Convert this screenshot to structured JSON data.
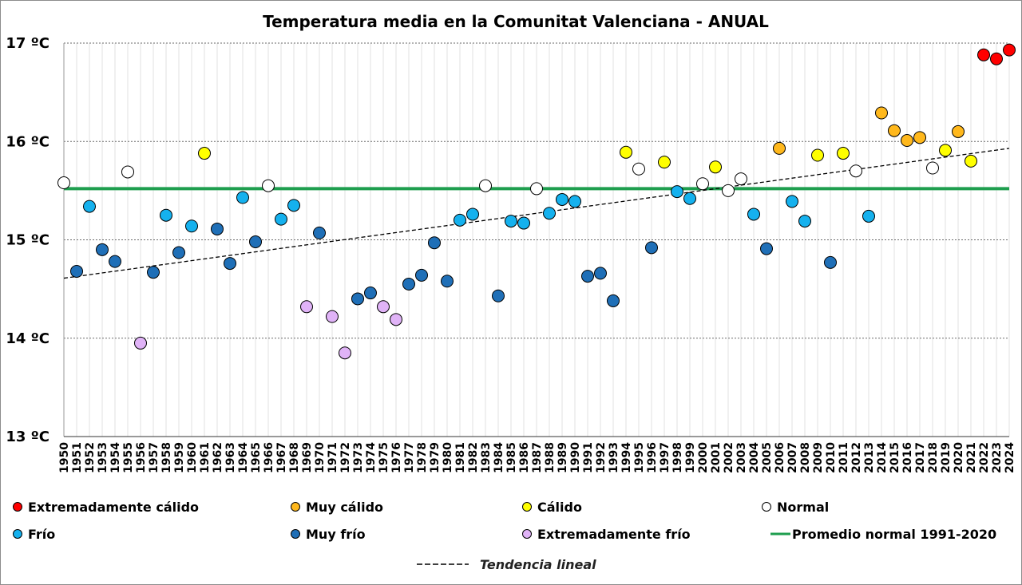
{
  "chart_data": {
    "type": "scatter",
    "title": "Temperatura media en la Comunitat Valenciana - ANUAL",
    "ylim": [
      13,
      17
    ],
    "yticks": [
      13,
      14,
      15,
      16,
      17
    ],
    "ytick_labels": [
      "13 ºC",
      "14 ºC",
      "15 ºC",
      "16 ºC",
      "17 ºC"
    ],
    "grid": true,
    "normal_line": {
      "label": "Promedio normal 1991-2020",
      "value": 15.52,
      "color": "#1e9e4e"
    },
    "trend": {
      "label": "Tendencia lineal",
      "start": [
        1950,
        14.61
      ],
      "end": [
        2024,
        15.93
      ]
    },
    "categories": [
      {
        "key": "extremadamente_calido",
        "label": "Extremadamente cálido",
        "color": "#ff0000"
      },
      {
        "key": "muy_calido",
        "label": "Muy cálido",
        "color": "#ffb81c"
      },
      {
        "key": "calido",
        "label": "Cálido",
        "color": "#ffff00"
      },
      {
        "key": "normal",
        "label": "Normal",
        "color": "#ffffff"
      },
      {
        "key": "frio",
        "label": "Frío",
        "color": "#15b1ee"
      },
      {
        "key": "muy_frio",
        "label": "Muy frío",
        "color": "#1f6fb7"
      },
      {
        "key": "extremadamente_frio",
        "label": "Extremadamente frío",
        "color": "#e0b3f7"
      }
    ],
    "points": [
      {
        "year": 1950,
        "value": 15.58,
        "cat": "normal"
      },
      {
        "year": 1951,
        "value": 14.68,
        "cat": "muy_frio"
      },
      {
        "year": 1952,
        "value": 15.34,
        "cat": "frio"
      },
      {
        "year": 1953,
        "value": 14.9,
        "cat": "muy_frio"
      },
      {
        "year": 1954,
        "value": 14.78,
        "cat": "muy_frio"
      },
      {
        "year": 1955,
        "value": 15.69,
        "cat": "normal"
      },
      {
        "year": 1956,
        "value": 13.95,
        "cat": "extremadamente_frio"
      },
      {
        "year": 1957,
        "value": 14.67,
        "cat": "muy_frio"
      },
      {
        "year": 1958,
        "value": 15.25,
        "cat": "frio"
      },
      {
        "year": 1959,
        "value": 14.87,
        "cat": "muy_frio"
      },
      {
        "year": 1960,
        "value": 15.14,
        "cat": "frio"
      },
      {
        "year": 1961,
        "value": 15.88,
        "cat": "calido"
      },
      {
        "year": 1962,
        "value": 15.11,
        "cat": "muy_frio"
      },
      {
        "year": 1963,
        "value": 14.76,
        "cat": "muy_frio"
      },
      {
        "year": 1964,
        "value": 15.43,
        "cat": "frio"
      },
      {
        "year": 1965,
        "value": 14.98,
        "cat": "muy_frio"
      },
      {
        "year": 1966,
        "value": 15.55,
        "cat": "normal"
      },
      {
        "year": 1967,
        "value": 15.21,
        "cat": "frio"
      },
      {
        "year": 1968,
        "value": 15.35,
        "cat": "frio"
      },
      {
        "year": 1969,
        "value": 14.32,
        "cat": "extremadamente_frio"
      },
      {
        "year": 1970,
        "value": 15.07,
        "cat": "muy_frio"
      },
      {
        "year": 1971,
        "value": 14.22,
        "cat": "extremadamente_frio"
      },
      {
        "year": 1972,
        "value": 13.85,
        "cat": "extremadamente_frio"
      },
      {
        "year": 1973,
        "value": 14.4,
        "cat": "muy_frio"
      },
      {
        "year": 1974,
        "value": 14.46,
        "cat": "muy_frio"
      },
      {
        "year": 1975,
        "value": 14.32,
        "cat": "extremadamente_frio"
      },
      {
        "year": 1976,
        "value": 14.19,
        "cat": "extremadamente_frio"
      },
      {
        "year": 1977,
        "value": 14.55,
        "cat": "muy_frio"
      },
      {
        "year": 1978,
        "value": 14.64,
        "cat": "muy_frio"
      },
      {
        "year": 1979,
        "value": 14.97,
        "cat": "muy_frio"
      },
      {
        "year": 1980,
        "value": 14.58,
        "cat": "muy_frio"
      },
      {
        "year": 1981,
        "value": 15.2,
        "cat": "frio"
      },
      {
        "year": 1982,
        "value": 15.26,
        "cat": "frio"
      },
      {
        "year": 1983,
        "value": 15.55,
        "cat": "normal"
      },
      {
        "year": 1984,
        "value": 14.43,
        "cat": "muy_frio"
      },
      {
        "year": 1985,
        "value": 15.19,
        "cat": "frio"
      },
      {
        "year": 1986,
        "value": 15.17,
        "cat": "frio"
      },
      {
        "year": 1987,
        "value": 15.52,
        "cat": "normal"
      },
      {
        "year": 1988,
        "value": 15.27,
        "cat": "frio"
      },
      {
        "year": 1989,
        "value": 15.41,
        "cat": "frio"
      },
      {
        "year": 1990,
        "value": 15.39,
        "cat": "frio"
      },
      {
        "year": 1991,
        "value": 14.63,
        "cat": "muy_frio"
      },
      {
        "year": 1992,
        "value": 14.66,
        "cat": "muy_frio"
      },
      {
        "year": 1993,
        "value": 14.38,
        "cat": "muy_frio"
      },
      {
        "year": 1994,
        "value": 15.89,
        "cat": "calido"
      },
      {
        "year": 1995,
        "value": 15.72,
        "cat": "normal"
      },
      {
        "year": 1996,
        "value": 14.92,
        "cat": "muy_frio"
      },
      {
        "year": 1997,
        "value": 15.79,
        "cat": "calido"
      },
      {
        "year": 1998,
        "value": 15.49,
        "cat": "frio"
      },
      {
        "year": 1999,
        "value": 15.42,
        "cat": "frio"
      },
      {
        "year": 2000,
        "value": 15.57,
        "cat": "normal"
      },
      {
        "year": 2001,
        "value": 15.74,
        "cat": "calido"
      },
      {
        "year": 2002,
        "value": 15.5,
        "cat": "normal"
      },
      {
        "year": 2003,
        "value": 15.62,
        "cat": "normal"
      },
      {
        "year": 2004,
        "value": 15.26,
        "cat": "frio"
      },
      {
        "year": 2005,
        "value": 14.91,
        "cat": "muy_frio"
      },
      {
        "year": 2006,
        "value": 15.93,
        "cat": "muy_calido"
      },
      {
        "year": 2007,
        "value": 15.39,
        "cat": "frio"
      },
      {
        "year": 2008,
        "value": 15.19,
        "cat": "frio"
      },
      {
        "year": 2009,
        "value": 15.86,
        "cat": "calido"
      },
      {
        "year": 2010,
        "value": 14.77,
        "cat": "muy_frio"
      },
      {
        "year": 2011,
        "value": 15.88,
        "cat": "calido"
      },
      {
        "year": 2012,
        "value": 15.7,
        "cat": "normal"
      },
      {
        "year": 2013,
        "value": 15.24,
        "cat": "frio"
      },
      {
        "year": 2014,
        "value": 16.29,
        "cat": "muy_calido"
      },
      {
        "year": 2015,
        "value": 16.11,
        "cat": "muy_calido"
      },
      {
        "year": 2016,
        "value": 16.01,
        "cat": "muy_calido"
      },
      {
        "year": 2017,
        "value": 16.04,
        "cat": "muy_calido"
      },
      {
        "year": 2018,
        "value": 15.73,
        "cat": "normal"
      },
      {
        "year": 2019,
        "value": 15.91,
        "cat": "calido"
      },
      {
        "year": 2020,
        "value": 16.1,
        "cat": "muy_calido"
      },
      {
        "year": 2021,
        "value": 15.8,
        "cat": "calido"
      },
      {
        "year": 2022,
        "value": 16.88,
        "cat": "extremadamente_calido"
      },
      {
        "year": 2023,
        "value": 16.84,
        "cat": "extremadamente_calido"
      },
      {
        "year": 2024,
        "value": 16.93,
        "cat": "extremadamente_calido"
      }
    ]
  }
}
